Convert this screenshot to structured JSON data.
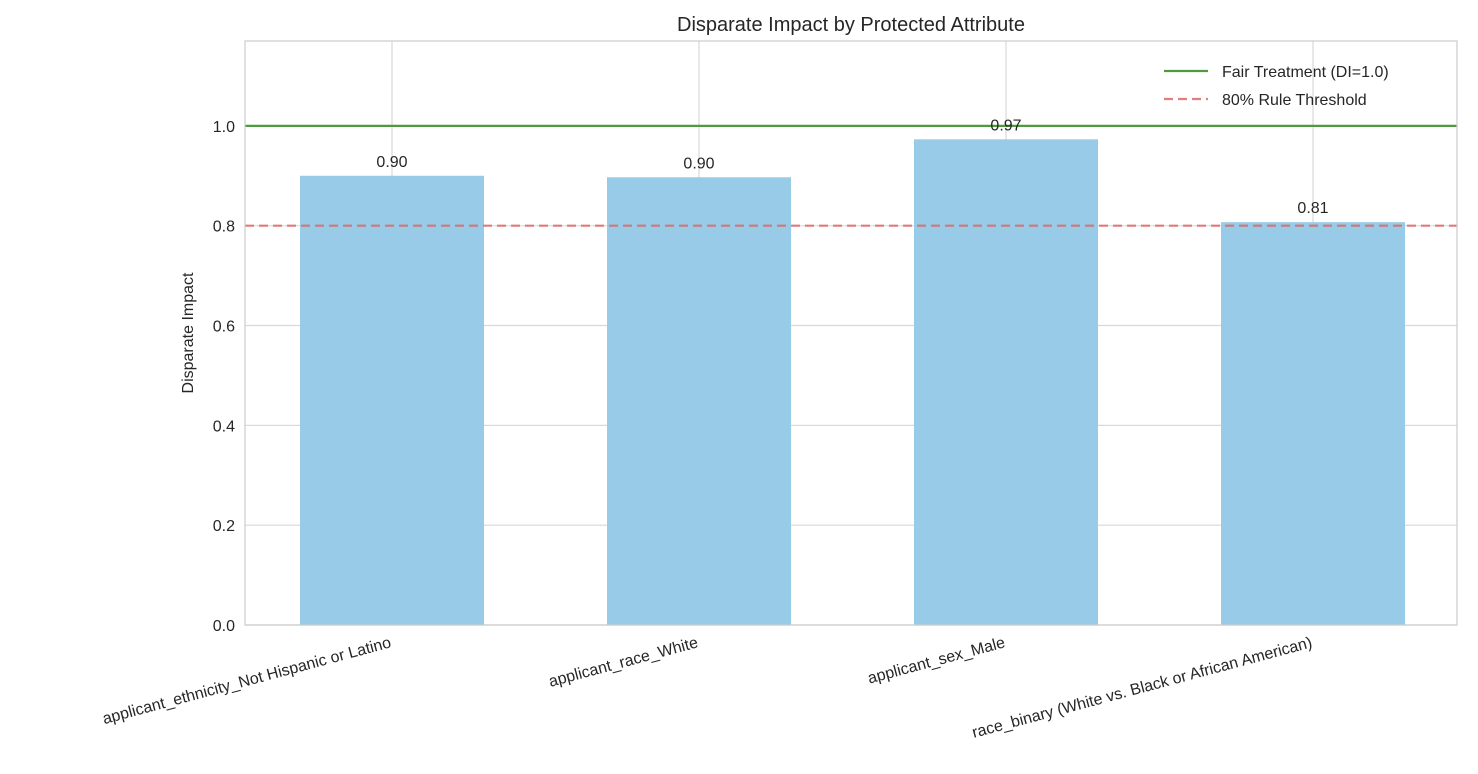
{
  "chart_data": {
    "type": "bar",
    "title": "Disparate Impact by Protected Attribute",
    "xlabel": "",
    "ylabel": "Disparate Impact",
    "categories": [
      "applicant_ethnicity_Not Hispanic or Latino",
      "applicant_race_White",
      "applicant_sex_Male",
      "race_binary (White vs. Black or African American)"
    ],
    "values": [
      0.9,
      0.897,
      0.973,
      0.807
    ],
    "value_labels": [
      "0.90",
      "0.90",
      "0.97",
      "0.81"
    ],
    "ylim": [
      0,
      1.17
    ],
    "yticks": [
      0.0,
      0.2,
      0.4,
      0.6,
      0.8,
      1.0
    ],
    "ytick_labels": [
      "0.0",
      "0.2",
      "0.4",
      "0.6",
      "0.8",
      "1.0"
    ],
    "grid": true,
    "bar_color": "#97cbe7",
    "reference_lines": [
      {
        "name": "Fair Treatment (DI=1.0)",
        "y": 1.0,
        "color": "#4f9a3c",
        "style": "solid"
      },
      {
        "name": "80% Rule Threshold",
        "y": 0.8,
        "color": "#e06666",
        "style": "dashed"
      }
    ],
    "legend": {
      "placement": "top-right"
    }
  }
}
